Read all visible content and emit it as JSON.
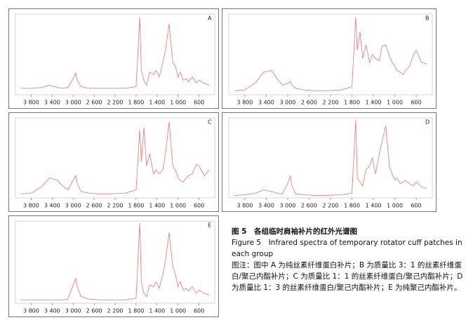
{
  "chart_data": [
    {
      "type": "line",
      "label": "A",
      "color": "#f08080",
      "xlim": [
        4100,
        300
      ],
      "ylim": [
        0,
        100
      ],
      "xticks": [
        {
          "value": 3800,
          "label": "3 800"
        },
        {
          "value": 3400,
          "label": "3 400"
        },
        {
          "value": 3000,
          "label": "3 000"
        },
        {
          "value": 2600,
          "label": "2 600"
        },
        {
          "value": 2200,
          "label": "2 200"
        },
        {
          "value": 1800,
          "label": "1 800"
        },
        {
          "value": 1400,
          "label": "1 400"
        },
        {
          "value": 1000,
          "label": "1 000"
        },
        600
      ],
      "x": [
        4000,
        3800,
        3600,
        3450,
        3300,
        3200,
        3100,
        3000,
        2950,
        2920,
        2850,
        2700,
        2500,
        2300,
        2000,
        1800,
        1730,
        1700,
        1650,
        1600,
        1540,
        1470,
        1420,
        1360,
        1290,
        1240,
        1170,
        1100,
        1050,
        1000,
        960,
        900,
        840,
        800,
        730,
        650,
        600,
        500,
        400
      ],
      "values": [
        8,
        8,
        9,
        12,
        9,
        8,
        9,
        20,
        27,
        18,
        10,
        8,
        8,
        8,
        8,
        10,
        96,
        30,
        18,
        12,
        28,
        25,
        30,
        22,
        40,
        55,
        88,
        40,
        35,
        22,
        28,
        18,
        20,
        16,
        22,
        15,
        18,
        14,
        12
      ]
    },
    {
      "type": "line",
      "label": "B",
      "color": "#f08080",
      "xlim": [
        4100,
        300
      ],
      "ylim": [
        0,
        100
      ],
      "xticks": [
        {
          "value": 3800,
          "label": "3 800"
        },
        {
          "value": 3400,
          "label": "3 400"
        },
        {
          "value": 3000,
          "label": "3 000"
        },
        {
          "value": 2600,
          "label": "2 600"
        },
        {
          "value": 2200,
          "label": "2 200"
        },
        {
          "value": 1800,
          "label": "1 800"
        },
        {
          "value": 1400,
          "label": "1 400"
        },
        {
          "value": 1000,
          "label": "1 000"
        },
        600
      ],
      "x": [
        4000,
        3800,
        3600,
        3450,
        3300,
        3200,
        3100,
        3000,
        2950,
        2920,
        2850,
        2700,
        2500,
        2300,
        2000,
        1800,
        1730,
        1700,
        1650,
        1600,
        1540,
        1470,
        1420,
        1360,
        1290,
        1240,
        1170,
        1100,
        1050,
        1000,
        960,
        900,
        840,
        800,
        730,
        650,
        600,
        500,
        400
      ],
      "values": [
        5,
        6,
        15,
        28,
        30,
        20,
        12,
        14,
        16,
        12,
        8,
        6,
        5,
        5,
        6,
        10,
        96,
        55,
        78,
        45,
        62,
        40,
        50,
        45,
        42,
        60,
        62,
        48,
        40,
        35,
        30,
        28,
        25,
        30,
        35,
        50,
        55,
        40,
        38
      ]
    },
    {
      "type": "line",
      "label": "C",
      "color": "#f08080",
      "xlim": [
        4100,
        300
      ],
      "ylim": [
        0,
        100
      ],
      "xticks": [
        {
          "value": 3800,
          "label": "3 800"
        },
        {
          "value": 3400,
          "label": "3 400"
        },
        {
          "value": 3000,
          "label": "3 000"
        },
        {
          "value": 2600,
          "label": "2 600"
        },
        {
          "value": 2200,
          "label": "2 200"
        },
        {
          "value": 1800,
          "label": "1 800"
        },
        {
          "value": 1400,
          "label": "1 400"
        },
        {
          "value": 1000,
          "label": "1 000"
        },
        600
      ],
      "x": [
        4000,
        3800,
        3600,
        3450,
        3300,
        3200,
        3100,
        3000,
        2950,
        2920,
        2850,
        2700,
        2500,
        2300,
        2000,
        1800,
        1730,
        1700,
        1650,
        1600,
        1540,
        1470,
        1420,
        1360,
        1290,
        1240,
        1170,
        1100,
        1050,
        1000,
        960,
        900,
        840,
        800,
        730,
        650,
        600,
        500,
        400
      ],
      "values": [
        5,
        6,
        14,
        25,
        22,
        15,
        10,
        22,
        28,
        18,
        8,
        6,
        5,
        5,
        6,
        10,
        85,
        45,
        88,
        40,
        55,
        30,
        35,
        30,
        35,
        55,
        95,
        40,
        35,
        25,
        22,
        20,
        25,
        28,
        30,
        42,
        40,
        28,
        35
      ]
    },
    {
      "type": "line",
      "label": "D",
      "color": "#f08080",
      "xlim": [
        4100,
        300
      ],
      "ylim": [
        0,
        100
      ],
      "xticks": [
        {
          "value": 3800,
          "label": "3 800"
        },
        {
          "value": 3400,
          "label": "3 400"
        },
        {
          "value": 3000,
          "label": "3 000"
        },
        {
          "value": 2600,
          "label": "2 600"
        },
        {
          "value": 2200,
          "label": "2 200"
        },
        {
          "value": 1800,
          "label": "1 800"
        },
        {
          "value": 1400,
          "label": "1 400"
        },
        {
          "value": 1000,
          "label": "1 000"
        },
        600
      ],
      "x": [
        4000,
        3800,
        3600,
        3450,
        3300,
        3200,
        3100,
        3000,
        2950,
        2920,
        2850,
        2700,
        2500,
        2300,
        2000,
        1800,
        1730,
        1700,
        1650,
        1600,
        1540,
        1470,
        1420,
        1360,
        1290,
        1240,
        1170,
        1100,
        1050,
        1000,
        960,
        900,
        840,
        800,
        730,
        650,
        600,
        500,
        400
      ],
      "values": [
        3,
        4,
        6,
        10,
        8,
        6,
        5,
        18,
        28,
        15,
        5,
        4,
        3,
        3,
        4,
        6,
        98,
        25,
        20,
        15,
        35,
        40,
        50,
        30,
        55,
        70,
        90,
        40,
        30,
        22,
        25,
        18,
        20,
        22,
        18,
        15,
        20,
        14,
        12
      ]
    },
    {
      "type": "line",
      "label": "E",
      "color": "#f08080",
      "xlim": [
        4100,
        300
      ],
      "ylim": [
        0,
        100
      ],
      "xticks": [
        {
          "value": 3800,
          "label": "3 800"
        },
        {
          "value": 3400,
          "label": "3 400"
        },
        {
          "value": 3000,
          "label": "3 000"
        },
        {
          "value": 2600,
          "label": "2 600"
        },
        {
          "value": 2200,
          "label": "2 200"
        },
        {
          "value": 1800,
          "label": "1 800"
        },
        {
          "value": 1400,
          "label": "1 400"
        },
        {
          "value": 1000,
          "label": "1 000"
        },
        600
      ],
      "x": [
        4000,
        3800,
        3600,
        3450,
        3300,
        3200,
        3100,
        3000,
        2950,
        2920,
        2850,
        2700,
        2500,
        2300,
        2000,
        1800,
        1730,
        1700,
        1650,
        1600,
        1540,
        1470,
        1420,
        1360,
        1290,
        1240,
        1170,
        1100,
        1050,
        1000,
        960,
        900,
        840,
        800,
        730,
        650,
        600,
        500,
        400
      ],
      "values": [
        4,
        4,
        4,
        4,
        4,
        4,
        5,
        22,
        30,
        20,
        8,
        5,
        4,
        4,
        4,
        6,
        98,
        25,
        12,
        8,
        22,
        20,
        26,
        18,
        35,
        52,
        86,
        45,
        35,
        20,
        26,
        16,
        18,
        15,
        20,
        12,
        16,
        12,
        10
      ]
    }
  ],
  "caption": {
    "title_cn": "图 5　各组临时肩袖补片的红外光谱图",
    "title_en": "Figure 5　Infrared spectra of temporary rotator cuff patches in each group",
    "note": "图注：图中 A 为纯丝素纤维蛋白补片；B 为质量比 3：1 的丝素纤维蛋白/聚己内酯补片；C 为质量比 1：1 的丝素纤维蛋白/聚己内酯补片；D 为质量比 1：3 的丝素纤维蛋白/聚己内酯补片；E 为纯聚己内酯补片。"
  }
}
